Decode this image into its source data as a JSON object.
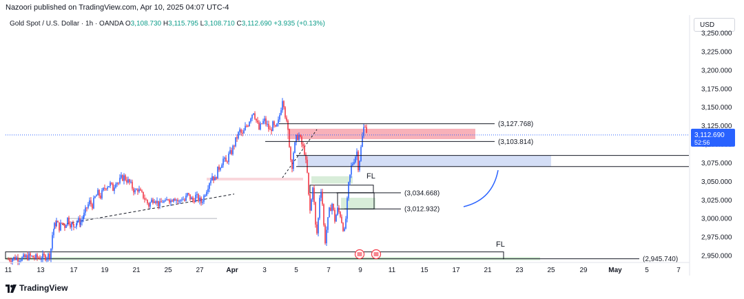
{
  "header": {
    "publisher_line": "Nazoori published on TradingView.com, Apr 10, 2025 04:07 UTC-4"
  },
  "legend": {
    "symbol": "Gold Spot / U.S. Dollar · 1h · OANDA",
    "open_label": "O",
    "open": "3,108.730",
    "high_label": "H",
    "high": "3,115.795",
    "low_label": "L",
    "low": "3,108.710",
    "close_label": "C",
    "close": "3,112.690",
    "change": "+3.935 (+0.13%)"
  },
  "currency_button": "USD",
  "footer": {
    "brand": "TradingView"
  },
  "colors": {
    "up": "#2962ff",
    "down": "#f23645",
    "supply_zone": "#f7a3ad",
    "demand_zone": "#c5d3f3",
    "green_zone": "#c8e6c9",
    "price_label_bg": "#2962ff",
    "curve": "#2962ff"
  },
  "chart_data": {
    "type": "candlestick",
    "symbol": "XAUUSD",
    "timeframe": "1h",
    "ylim": [
      2940,
      3255
    ],
    "y_ticks": [
      "3,250.000",
      "3,225.000",
      "3,200.000",
      "3,175.000",
      "3,150.000",
      "3,125.000",
      "3,100.000",
      "3,075.000",
      "3,050.000",
      "3,025.000",
      "3,000.000",
      "2,975.000",
      "2,950.000"
    ],
    "y_tick_values": [
      3250,
      3225,
      3200,
      3175,
      3150,
      3125,
      3100,
      3075,
      3050,
      3025,
      3000,
      2975,
      2950
    ],
    "x_ticks": [
      "11",
      "13",
      "17",
      "19",
      "21",
      "25",
      "27",
      "Apr",
      "3",
      "5",
      "7",
      "9",
      "11",
      "15",
      "17",
      "21",
      "23",
      "25",
      "29",
      "May",
      "5",
      "7"
    ],
    "x_tick_index": [
      0,
      47,
      95,
      140,
      186,
      232,
      278,
      325,
      372,
      418,
      465,
      511,
      557,
      604,
      650,
      696,
      742,
      788,
      835,
      881,
      927,
      973
    ],
    "current_price": "3,112.690",
    "current_price_value": 3112.69,
    "countdown": "52:56",
    "levels": [
      {
        "label": "(3,127.768)",
        "value": 3127.768
      },
      {
        "label": "(3,103.814)",
        "value": 3103.814
      },
      {
        "label": "(3,034.668)",
        "value": 3034.668
      },
      {
        "label": "(3,012.932)",
        "value": 3012.932
      },
      {
        "label": "(2,945.740)",
        "value": 2945.74
      }
    ],
    "annotations": [
      {
        "text": "FL",
        "near": "3,045"
      },
      {
        "text": "FL",
        "near": "2,955"
      }
    ],
    "price_path": [
      [
        0,
        2945
      ],
      [
        10,
        2947
      ],
      [
        20,
        2946
      ],
      [
        30,
        2949
      ],
      [
        40,
        2947
      ],
      [
        52,
        2948
      ],
      [
        60,
        2951
      ],
      [
        62,
        2960
      ],
      [
        64,
        2978
      ],
      [
        67,
        2990
      ],
      [
        70,
        2995
      ],
      [
        74,
        2988
      ],
      [
        78,
        2994
      ],
      [
        82,
        2990
      ],
      [
        86,
        3000
      ],
      [
        90,
        2993
      ],
      [
        95,
        2990
      ],
      [
        100,
        2997
      ],
      [
        105,
        2995
      ],
      [
        110,
        3005
      ],
      [
        114,
        3015
      ],
      [
        118,
        3022
      ],
      [
        122,
        3018
      ],
      [
        126,
        3028
      ],
      [
        130,
        3034
      ],
      [
        134,
        3030
      ],
      [
        138,
        3038
      ],
      [
        142,
        3044
      ],
      [
        148,
        3046
      ],
      [
        152,
        3040
      ],
      [
        156,
        3051
      ],
      [
        160,
        3048
      ],
      [
        164,
        3054
      ],
      [
        168,
        3056
      ],
      [
        172,
        3052
      ],
      [
        176,
        3048
      ],
      [
        180,
        3042
      ],
      [
        184,
        3036
      ],
      [
        188,
        3040
      ],
      [
        192,
        3034
      ],
      [
        196,
        3030
      ],
      [
        200,
        3024
      ],
      [
        204,
        3018
      ],
      [
        208,
        3024
      ],
      [
        212,
        3028
      ],
      [
        216,
        3022
      ],
      [
        220,
        3018
      ],
      [
        224,
        3024
      ],
      [
        228,
        3020
      ],
      [
        232,
        3028
      ],
      [
        236,
        3024
      ],
      [
        240,
        3030
      ],
      [
        244,
        3026
      ],
      [
        248,
        3022
      ],
      [
        252,
        3028
      ],
      [
        256,
        3024
      ],
      [
        260,
        3032
      ],
      [
        264,
        3028
      ],
      [
        268,
        3024
      ],
      [
        272,
        3030
      ],
      [
        276,
        3026
      ],
      [
        280,
        3022
      ],
      [
        284,
        3030
      ],
      [
        288,
        3040
      ],
      [
        292,
        3050
      ],
      [
        296,
        3058
      ],
      [
        300,
        3052
      ],
      [
        304,
        3065
      ],
      [
        308,
        3072
      ],
      [
        312,
        3080
      ],
      [
        316,
        3075
      ],
      [
        320,
        3085
      ],
      [
        324,
        3090
      ],
      [
        328,
        3100
      ],
      [
        332,
        3110
      ],
      [
        336,
        3118
      ],
      [
        340,
        3112
      ],
      [
        344,
        3122
      ],
      [
        348,
        3128
      ],
      [
        352,
        3138
      ],
      [
        356,
        3145
      ],
      [
        360,
        3132
      ],
      [
        364,
        3120
      ],
      [
        368,
        3128
      ],
      [
        372,
        3132
      ],
      [
        376,
        3125
      ],
      [
        380,
        3118
      ],
      [
        384,
        3126
      ],
      [
        388,
        3120
      ],
      [
        392,
        3130
      ],
      [
        396,
        3150
      ],
      [
        398,
        3162
      ],
      [
        400,
        3155
      ],
      [
        402,
        3140
      ],
      [
        404,
        3128
      ],
      [
        406,
        3118
      ],
      [
        408,
        3100
      ],
      [
        410,
        3080
      ],
      [
        412,
        3072
      ],
      [
        414,
        3090
      ],
      [
        418,
        3108
      ],
      [
        422,
        3112
      ],
      [
        426,
        3100
      ],
      [
        430,
        3090
      ],
      [
        434,
        3060
      ],
      [
        436,
        3030
      ],
      [
        438,
        3010
      ],
      [
        440,
        3025
      ],
      [
        442,
        3045
      ],
      [
        444,
        3020
      ],
      [
        446,
        2990
      ],
      [
        448,
        2980
      ],
      [
        450,
        3000
      ],
      [
        452,
        3030
      ],
      [
        454,
        3040
      ],
      [
        456,
        3020
      ],
      [
        458,
        2990
      ],
      [
        460,
        2970
      ],
      [
        462,
        2985
      ],
      [
        466,
        3010
      ],
      [
        470,
        3020
      ],
      [
        474,
        2998
      ],
      [
        478,
        3012
      ],
      [
        482,
        3005
      ],
      [
        486,
        2988
      ],
      [
        488,
        2982
      ],
      [
        490,
        3000
      ],
      [
        494,
        3045
      ],
      [
        498,
        3070
      ],
      [
        502,
        3080
      ],
      [
        506,
        3090
      ],
      [
        508,
        3070
      ],
      [
        510,
        3080
      ],
      [
        512,
        3095
      ],
      [
        514,
        3110
      ],
      [
        516,
        3122
      ],
      [
        518,
        3128
      ],
      [
        520,
        3118
      ],
      [
        522,
        3112
      ]
    ]
  }
}
